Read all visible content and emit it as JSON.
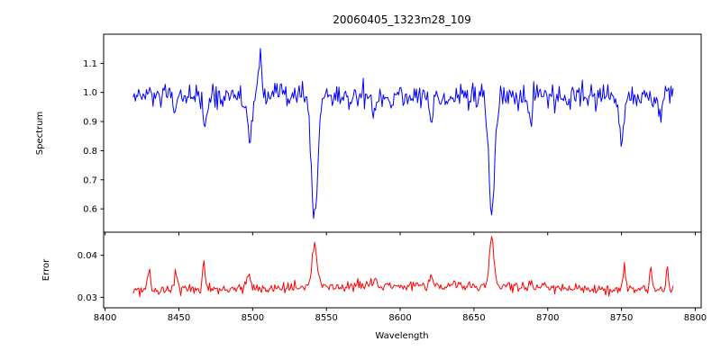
{
  "figure": {
    "title": "20060405_1323m28_109",
    "background": "#ffffff",
    "axes_color": "#000000"
  },
  "chart_data": [
    {
      "type": "line",
      "title": "20060405_1323m28_109",
      "ylabel": "Spectrum",
      "grid": false,
      "legend": null,
      "xlim": [
        8399,
        8804
      ],
      "ylim": [
        0.52,
        1.2
      ],
      "yticks": [
        {
          "value": 0.6,
          "label": "0.6"
        },
        {
          "value": 0.7,
          "label": "0.7"
        },
        {
          "value": 0.8,
          "label": "0.8"
        },
        {
          "value": 0.9,
          "label": "0.9"
        },
        {
          "value": 1.0,
          "label": "1.0"
        },
        {
          "value": 1.1,
          "label": "1.1"
        }
      ],
      "series": [
        {
          "name": "spectrum",
          "color": "#0000ff",
          "model": {
            "x_start": 8419,
            "x_end": 8785,
            "x_step": 0.75,
            "seed": 12345,
            "baseline": 0.985,
            "noise_sigma": 0.022,
            "absorption_lines": [
              {
                "center": 8447,
                "depth": 0.07,
                "width": 1.5
              },
              {
                "center": 8468,
                "depth": 0.1,
                "width": 1.8
              },
              {
                "center": 8498,
                "depth": 0.18,
                "width": 2.2
              },
              {
                "center": 8542,
                "depth": 0.43,
                "width": 2.8
              },
              {
                "center": 8582,
                "depth": 0.06,
                "width": 1.5
              },
              {
                "center": 8621,
                "depth": 0.07,
                "width": 1.8
              },
              {
                "center": 8662,
                "depth": 0.42,
                "width": 2.8
              },
              {
                "center": 8688,
                "depth": 0.07,
                "width": 1.5
              },
              {
                "center": 8713,
                "depth": 0.05,
                "width": 1.5
              },
              {
                "center": 8750,
                "depth": 0.14,
                "width": 2.2
              },
              {
                "center": 8776,
                "depth": 0.07,
                "width": 1.5
              }
            ],
            "emission_spikes": [
              {
                "center": 8505,
                "height": 0.17,
                "width": 1.3
              }
            ]
          }
        }
      ]
    },
    {
      "type": "line",
      "ylabel": "Error",
      "xlabel": "Wavelength",
      "grid": false,
      "legend": null,
      "xlim": [
        8399,
        8804
      ],
      "ylim": [
        0.0275,
        0.0455
      ],
      "yticks": [
        {
          "value": 0.03,
          "label": "0.03"
        },
        {
          "value": 0.04,
          "label": "0.04"
        }
      ],
      "xticks": [
        {
          "value": 8400,
          "label": "8400"
        },
        {
          "value": 8450,
          "label": "8450"
        },
        {
          "value": 8500,
          "label": "8500"
        },
        {
          "value": 8550,
          "label": "8550"
        },
        {
          "value": 8600,
          "label": "8600"
        },
        {
          "value": 8650,
          "label": "8650"
        },
        {
          "value": 8700,
          "label": "8700"
        },
        {
          "value": 8750,
          "label": "8750"
        },
        {
          "value": 8800,
          "label": "8800"
        }
      ],
      "series": [
        {
          "name": "error",
          "color": "#ff0000",
          "model": {
            "x_start": 8419,
            "x_end": 8785,
            "x_step": 0.75,
            "seed": 54321,
            "baseline": 0.0315,
            "noise_sigma": 0.0006,
            "broad_hump": {
              "center": 8610,
              "height": 0.0013,
              "width": 130
            },
            "peaks": [
              {
                "center": 8430,
                "height": 0.005,
                "width": 1.3
              },
              {
                "center": 8448,
                "height": 0.0045,
                "width": 1.3
              },
              {
                "center": 8467,
                "height": 0.006,
                "width": 1.4
              },
              {
                "center": 8497,
                "height": 0.0035,
                "width": 1.6
              },
              {
                "center": 8542,
                "height": 0.0105,
                "width": 2.2
              },
              {
                "center": 8583,
                "height": 0.0018,
                "width": 1.3
              },
              {
                "center": 8621,
                "height": 0.0025,
                "width": 1.6
              },
              {
                "center": 8662,
                "height": 0.012,
                "width": 2.2
              },
              {
                "center": 8688,
                "height": 0.002,
                "width": 1.3
              },
              {
                "center": 8752,
                "height": 0.0045,
                "width": 1.4
              },
              {
                "center": 8770,
                "height": 0.005,
                "width": 1.3
              },
              {
                "center": 8781,
                "height": 0.0055,
                "width": 1.1
              }
            ]
          }
        }
      ]
    }
  ]
}
